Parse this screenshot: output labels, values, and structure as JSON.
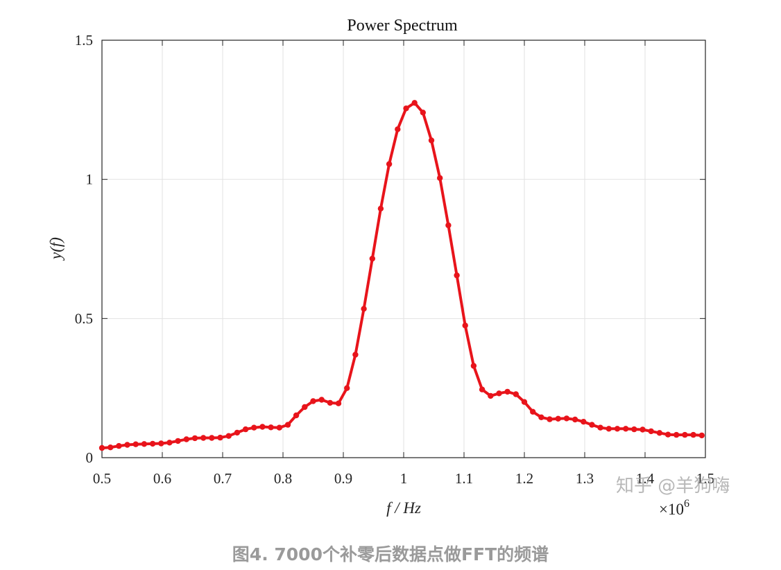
{
  "chart_data": {
    "type": "line",
    "title": "Power Spectrum",
    "xlabel": "f / Hz",
    "ylabel": "y(f)",
    "x_multiplier": "×10",
    "x_multiplier_exp": "6",
    "xlim": [
      0.5,
      1.5
    ],
    "ylim": [
      0,
      1.5
    ],
    "xticks": [
      "0.5",
      "0.6",
      "0.7",
      "0.8",
      "0.9",
      "1",
      "1.1",
      "1.2",
      "1.3",
      "1.4",
      "1.5"
    ],
    "yticks": [
      "0",
      "0.5",
      "1",
      "1.5"
    ],
    "grid": true,
    "color": "#e8141b",
    "series": [
      {
        "x": [
          0.5,
          0.514,
          0.528,
          0.542,
          0.556,
          0.57,
          0.584,
          0.598,
          0.612,
          0.626,
          0.64,
          0.654,
          0.668,
          0.682,
          0.696,
          0.71,
          0.724,
          0.738,
          0.752,
          0.766,
          0.78,
          0.794,
          0.808,
          0.822,
          0.836,
          0.85,
          0.864,
          0.878,
          0.892,
          0.906,
          0.92,
          0.934,
          0.948,
          0.962,
          0.976,
          0.99,
          1.004,
          1.018,
          1.032,
          1.046,
          1.06,
          1.074,
          1.088,
          1.102,
          1.116,
          1.13,
          1.144,
          1.158,
          1.172,
          1.186,
          1.2,
          1.214,
          1.228,
          1.242,
          1.256,
          1.27,
          1.284,
          1.298,
          1.312,
          1.326,
          1.34,
          1.354,
          1.368,
          1.382,
          1.396,
          1.41,
          1.424,
          1.438,
          1.452,
          1.466,
          1.48,
          1.494
        ],
        "y": [
          0.035,
          0.037,
          0.042,
          0.046,
          0.048,
          0.049,
          0.05,
          0.051,
          0.054,
          0.06,
          0.066,
          0.07,
          0.071,
          0.071,
          0.072,
          0.078,
          0.09,
          0.102,
          0.108,
          0.111,
          0.109,
          0.108,
          0.118,
          0.152,
          0.182,
          0.203,
          0.208,
          0.197,
          0.195,
          0.25,
          0.37,
          0.535,
          0.715,
          0.895,
          1.055,
          1.18,
          1.255,
          1.275,
          1.24,
          1.14,
          1.005,
          0.835,
          0.655,
          0.475,
          0.33,
          0.245,
          0.222,
          0.231,
          0.237,
          0.228,
          0.2,
          0.165,
          0.145,
          0.138,
          0.14,
          0.141,
          0.137,
          0.129,
          0.118,
          0.108,
          0.104,
          0.104,
          0.104,
          0.102,
          0.101,
          0.095,
          0.089,
          0.083,
          0.082,
          0.082,
          0.082,
          0.08
        ]
      }
    ]
  },
  "caption": "图4. 7000个补零后数据点做FFT的频谱",
  "watermark": "知乎 @羊狗嗨"
}
